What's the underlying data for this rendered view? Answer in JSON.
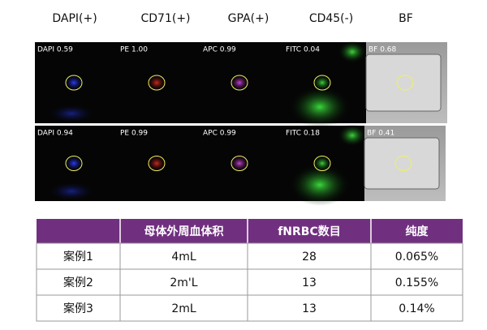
{
  "headers": [
    "DAPI(+)",
    "CD71(+)",
    "GPA(+)",
    "CD45(-)",
    "BF"
  ],
  "image_rows": [
    [
      "DAPI 0.59",
      "PE 1.00",
      "APC 0.99",
      "FITC 0.04",
      "BF 0.68"
    ],
    [
      "DAPI 0.94",
      "PE 0.99",
      "APC 0.99",
      "FITC 0.18",
      "BF 0.41"
    ]
  ],
  "table": {
    "header": [
      "母体外周血体积",
      "fNRBC数目",
      "纯度"
    ],
    "rows": [
      [
        "案例1",
        "4mL",
        "28",
        "0.065%"
      ],
      [
        "案例2",
        "2m'L",
        "13",
        "0.155%"
      ],
      [
        "案例3",
        "2mL",
        "13",
        "0.14%"
      ]
    ]
  }
}
